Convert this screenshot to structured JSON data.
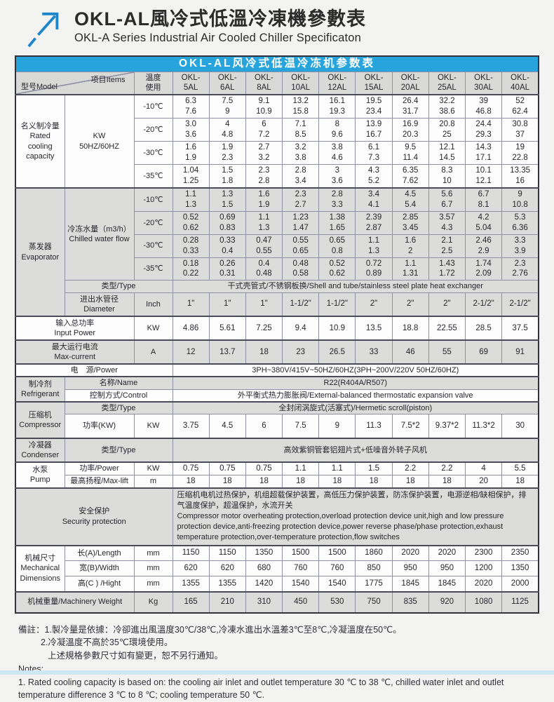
{
  "header": {
    "title_zh": "OKL-AL風冷式低溫冷凍機參數表",
    "title_en": "OKL-A Series Industrial Air Cooled Chiller Specificaton",
    "logo_color": "#1d86c8"
  },
  "colors": {
    "caption_blue": "#27a4dc",
    "row_gray": "#dcdcdb",
    "row_white": "#fdfdfd"
  },
  "table": {
    "caption": "OKL-AL风冷式低温冷冻机参数表",
    "corner_model": "型号Model",
    "corner_items": "项目Items",
    "temp_use": "温度\n使用",
    "models": [
      "OKL-\n5AL",
      "OKL-\n6AL",
      "OKL-\n8AL",
      "OKL-\n10AL",
      "OKL-\n12AL",
      "OKL-\n15AL",
      "OKL-\n20AL",
      "OKL-\n25AL",
      "OKL-\n30AL",
      "OKL-\n40AL"
    ],
    "rated": {
      "category": "名义制冷量\nRated\ncooling\ncapacity",
      "unit": "KW\n50HZ/60HZ",
      "rows": [
        {
          "temp": "-10℃",
          "values": [
            "6.3\n7.6",
            "7.5\n9",
            "9.1\n10.9",
            "13.2\n15.8",
            "16.1\n19.3",
            "19.5\n23.4",
            "26.4\n31.7",
            "32.2\n38.6",
            "39\n46.8",
            "52\n62.4"
          ]
        },
        {
          "temp": "-20℃",
          "values": [
            "3.0\n3.6",
            "4\n4.8",
            "6\n7.2",
            "7.1\n8.5",
            "8\n9.6",
            "13.9\n16.7",
            "16.9\n20.3",
            "20.8\n25",
            "24.4\n29.3",
            "30.8\n37"
          ]
        },
        {
          "temp": "-30℃",
          "values": [
            "1.6\n1.9",
            "1.9\n2.3",
            "2.7\n3.2",
            "3.2\n3.8",
            "3.8\n4.6",
            "6.1\n7.3",
            "9.5\n11.4",
            "12.1\n14.5",
            "14.3\n17.1",
            "19\n22.8"
          ]
        },
        {
          "temp": "-35℃",
          "values": [
            "1.04\n1.25",
            "1.5\n1.8",
            "2.3\n2.8",
            "2.8\n3.4",
            "3\n3.6",
            "4.3\n5.2",
            "6.35\n7.62",
            "8.3\n10",
            "10.1\n12.1",
            "13.35\n16"
          ]
        }
      ]
    },
    "evaporator": {
      "category": "蒸发器\nEvaporator",
      "item": "冷冻水量（m3/h）\nChilled water flow",
      "rows": [
        {
          "temp": "-10℃",
          "values": [
            "1.1\n1.3",
            "1.3\n1.5",
            "1.6\n1.9",
            "2.3\n2.7",
            "2.8\n3.3",
            "3.4\n4.1",
            "4.5\n5.4",
            "5.6\n6.7",
            "6.7\n8.1",
            "9\n10.8"
          ]
        },
        {
          "temp": "-20℃",
          "values": [
            "0.52\n0.62",
            "0.69\n0.83",
            "1.1\n1.3",
            "1.23\n1.47",
            "1.38\n1.65",
            "2.39\n2.87",
            "2.85\n3.45",
            "3.57\n4.3",
            "4.2\n5.04",
            "5.3\n6.36"
          ]
        },
        {
          "temp": "-30℃",
          "values": [
            "0.28\n0.33",
            "0.33\n0.4",
            "0.47\n0.55",
            "0.55\n0.65",
            "0.65\n0.8",
            "1.1\n1.3",
            "1.6\n2",
            "2.1\n2.5",
            "2.46\n2.9",
            "3.3\n3.9"
          ]
        },
        {
          "temp": "-35℃",
          "values": [
            "0.18\n0.22",
            "0.26\n0.31",
            "0.4\n0.48",
            "0.48\n0.58",
            "0.52\n0.62",
            "0.72\n0.89",
            "1.1\n1.31",
            "1.43\n1.72",
            "1.74\n2.09",
            "2.3\n2.76"
          ]
        }
      ],
      "type_label": "类型/Type",
      "type_value": "干式壳管式/不锈钢板换/Shell and tube/stainless steel plate heat exchanger",
      "diameter_label": "进出水管径\nDiameter",
      "diameter_unit": "Inch",
      "diameter_values": [
        "1\"",
        "1\"",
        "1\"",
        "1-1/2\"",
        "1-1/2\"",
        "2\"",
        "2\"",
        "2\"",
        "2-1/2\"",
        "2-1/2\""
      ]
    },
    "input_power": {
      "label": "输入总功率\nInput Power",
      "unit": "KW",
      "values": [
        "4.86",
        "5.61",
        "7.25",
        "9.4",
        "10.9",
        "13.5",
        "18.8",
        "22.55",
        "28.5",
        "37.5"
      ]
    },
    "max_current": {
      "label": "最大运行电流\nMax-current",
      "unit": "A",
      "values": [
        "12",
        "13.7",
        "18",
        "23",
        "26.5",
        "33",
        "46",
        "55",
        "69",
        "91"
      ]
    },
    "power_supply": {
      "label": "电　源/Power",
      "value": "3PH~380V/415V~50HZ/60HZ(3PH~200V/220V 50HZ/60HZ)"
    },
    "refrigerant": {
      "category": "制冷剂\nRefrigerant",
      "name_label": "名称/Name",
      "name_value": "R22(R404A/R507)",
      "control_label": "控制方式/Control",
      "control_value": "外平衡式热力膨胀阀/External-balanced thermostatic expansion valve"
    },
    "compressor": {
      "category": "压缩机\nCompressor",
      "type_label": "类型/Type",
      "type_value": "全封闭涡旋式(活塞式)/Hermetic scroll(piston)",
      "power_label": "功率(KW)",
      "power_unit": "KW",
      "power_values": [
        "3.75",
        "4.5",
        "6",
        "7.5",
        "9",
        "11.3",
        "7.5*2",
        "9.37*2",
        "11.3*2",
        "30"
      ]
    },
    "condenser": {
      "category": "冷凝器\nCondenser",
      "type_label": "类型/Type",
      "type_value": "高效紫铜管套铝翅片式+低噪音外转子风机"
    },
    "pump": {
      "category": "水泵\nPump",
      "power_label": "功率/Power",
      "power_unit": "KW",
      "power_values": [
        "0.75",
        "0.75",
        "0.75",
        "1.1",
        "1.1",
        "1.5",
        "2.2",
        "2.2",
        "4",
        "5.5"
      ],
      "lift_label": "最高扬程/Max-lift",
      "lift_unit": "m",
      "lift_values": [
        "18",
        "18",
        "18",
        "18",
        "18",
        "18",
        "18",
        "18",
        "20",
        "18"
      ]
    },
    "security": {
      "label": "安全保护\nSecurity protection",
      "text_zh": "压缩机电机过热保护，机组超载保护装置，高低压力保护装置，防冻保护装置，电源逆相/缺相保护，排气温度保护，超温保护，水流开关",
      "text_en": "Compressor motor overheating protection,overload protection device unit,high and low pressure protection device,anti-freezing protection device,power reverse phase/phase protection,exhaust temperature protection,over-temperature protection,flow switches"
    },
    "mechanical": {
      "category": "机械尺寸\nMechanical\nDimensions",
      "rows": [
        {
          "label": "长(A)/Length",
          "unit": "mm",
          "values": [
            "1150",
            "1150",
            "1350",
            "1500",
            "1500",
            "1860",
            "2020",
            "2020",
            "2300",
            "2350"
          ]
        },
        {
          "label": "宽(B)/Width",
          "unit": "mm",
          "values": [
            "620",
            "620",
            "680",
            "760",
            "760",
            "850",
            "950",
            "950",
            "1200",
            "1350"
          ]
        },
        {
          "label": "高(C ) /Hight",
          "unit": "mm",
          "values": [
            "1355",
            "1355",
            "1420",
            "1540",
            "1540",
            "1775",
            "1845",
            "1845",
            "2020",
            "2000"
          ]
        }
      ]
    },
    "weight": {
      "label": "机械重量/Machinery Weight",
      "unit": "Kg",
      "values": [
        "165",
        "210",
        "310",
        "450",
        "530",
        "750",
        "835",
        "920",
        "1080",
        "1125"
      ]
    }
  },
  "notes": {
    "line1": "備註：1.製冷量是依據：冷卻進出風溫度30℃/38℃,冷凍水進出水溫差3℃至8℃,冷凝溫度在50℃。",
    "line2": "2.冷凝溫度不高於35℃環境使用。",
    "line3": "上述規格參數尺寸如有變更，恕不另行通知。",
    "line4": "Notes:",
    "line5": "1. Rated cooling capacity is based on: the cooling air inlet and outlet temperature 30 ℃ to 38 ℃, chilled water inlet and outlet temperature difference 3 ℃ to 8 ℃; cooling temperature 50 ℃."
  }
}
